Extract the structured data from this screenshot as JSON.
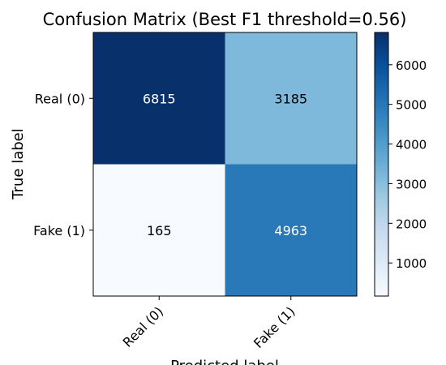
{
  "chart_data": {
    "type": "heatmap",
    "title": "Confusion Matrix (Best F1 threshold=0.56)",
    "xlabel": "Predicted label",
    "ylabel": "True label",
    "x_categories": [
      "Real (0)",
      "Fake (1)"
    ],
    "y_categories": [
      "Real (0)",
      "Fake (1)"
    ],
    "values": [
      [
        6815,
        3185
      ],
      [
        165,
        4963
      ]
    ],
    "colormap": "Blues",
    "colorbar": {
      "ticks": [
        1000,
        2000,
        3000,
        4000,
        5000,
        6000
      ],
      "range": [
        165,
        6815
      ]
    },
    "text_colors": {
      "dark_cell": "#ffffff",
      "light_cell": "#000000"
    },
    "colors": {
      "axis": "#000000",
      "background": "#ffffff"
    }
  }
}
